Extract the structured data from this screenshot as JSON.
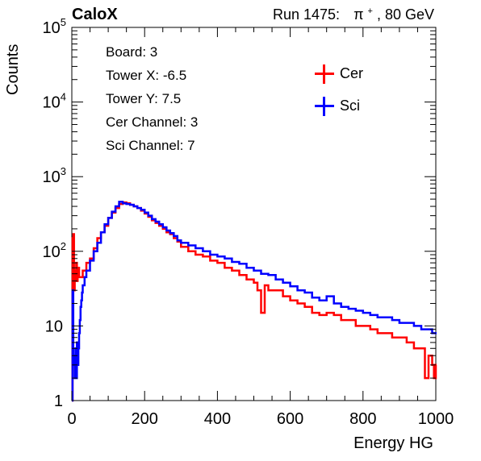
{
  "header": {
    "left_label": "CaloX",
    "run_text": "Run 1475:",
    "particle": "π",
    "particle_sup": "+",
    "energy": ", 80 GeV"
  },
  "info_box": {
    "lines": [
      "Board: 3",
      "Tower X: -6.5",
      "Tower Y: 7.5",
      "Cer Channel: 3",
      "Sci Channel: 7"
    ]
  },
  "colors": {
    "cer": "#ff0000",
    "sci": "#0000ff"
  },
  "chart_data": {
    "type": "line",
    "xlabel": "Energy HG",
    "ylabel": "Counts",
    "xlim": [
      0,
      1000
    ],
    "ylim": [
      1,
      100000
    ],
    "y_scale": "log",
    "x_ticks": [
      "0",
      "200",
      "400",
      "600",
      "800",
      "1000"
    ],
    "y_ticks": [
      {
        "base": "1",
        "exp": ""
      },
      {
        "base": "10",
        "exp": ""
      },
      {
        "base": "10",
        "exp": "2"
      },
      {
        "base": "10",
        "exp": "3"
      },
      {
        "base": "10",
        "exp": "4"
      },
      {
        "base": "10",
        "exp": "5"
      }
    ],
    "grid": false,
    "legend_position": "top-right",
    "series": [
      {
        "name": "Cer",
        "color": "#ff0000",
        "points": [
          [
            0,
            1
          ],
          [
            2,
            150
          ],
          [
            4,
            170
          ],
          [
            6,
            30
          ],
          [
            8,
            40
          ],
          [
            10,
            55
          ],
          [
            12,
            70
          ],
          [
            14,
            40
          ],
          [
            16,
            45
          ],
          [
            18,
            60
          ],
          [
            20,
            45
          ],
          [
            30,
            55
          ],
          [
            40,
            70
          ],
          [
            50,
            80
          ],
          [
            60,
            110
          ],
          [
            70,
            150
          ],
          [
            80,
            180
          ],
          [
            90,
            220
          ],
          [
            100,
            280
          ],
          [
            110,
            330
          ],
          [
            120,
            380
          ],
          [
            130,
            430
          ],
          [
            140,
            450
          ],
          [
            150,
            440
          ],
          [
            160,
            420
          ],
          [
            170,
            400
          ],
          [
            180,
            380
          ],
          [
            190,
            350
          ],
          [
            200,
            320
          ],
          [
            210,
            290
          ],
          [
            220,
            260
          ],
          [
            230,
            240
          ],
          [
            240,
            220
          ],
          [
            250,
            200
          ],
          [
            260,
            180
          ],
          [
            270,
            170
          ],
          [
            280,
            150
          ],
          [
            290,
            135
          ],
          [
            300,
            115
          ],
          [
            320,
            100
          ],
          [
            340,
            90
          ],
          [
            360,
            85
          ],
          [
            380,
            75
          ],
          [
            400,
            70
          ],
          [
            420,
            60
          ],
          [
            440,
            55
          ],
          [
            460,
            48
          ],
          [
            480,
            42
          ],
          [
            500,
            38
          ],
          [
            510,
            30
          ],
          [
            520,
            15
          ],
          [
            530,
            35
          ],
          [
            540,
            30
          ],
          [
            560,
            30
          ],
          [
            580,
            25
          ],
          [
            600,
            22
          ],
          [
            620,
            20
          ],
          [
            640,
            18
          ],
          [
            660,
            15
          ],
          [
            680,
            14
          ],
          [
            700,
            15
          ],
          [
            720,
            14
          ],
          [
            740,
            12
          ],
          [
            760,
            12
          ],
          [
            780,
            10
          ],
          [
            800,
            10
          ],
          [
            820,
            9
          ],
          [
            840,
            8
          ],
          [
            860,
            8
          ],
          [
            880,
            7
          ],
          [
            900,
            7
          ],
          [
            920,
            6
          ],
          [
            940,
            5
          ],
          [
            960,
            5
          ],
          [
            970,
            2
          ],
          [
            980,
            4
          ],
          [
            990,
            3
          ],
          [
            995,
            2
          ],
          [
            1000,
            3
          ]
        ]
      },
      {
        "name": "Sci",
        "color": "#0000ff",
        "points": [
          [
            0,
            1
          ],
          [
            2,
            30
          ],
          [
            4,
            4
          ],
          [
            6,
            3
          ],
          [
            8,
            2
          ],
          [
            10,
            5
          ],
          [
            12,
            2
          ],
          [
            14,
            6
          ],
          [
            16,
            3
          ],
          [
            18,
            5
          ],
          [
            20,
            8
          ],
          [
            22,
            12
          ],
          [
            24,
            18
          ],
          [
            26,
            22
          ],
          [
            28,
            28
          ],
          [
            30,
            35
          ],
          [
            35,
            45
          ],
          [
            40,
            55
          ],
          [
            50,
            75
          ],
          [
            60,
            100
          ],
          [
            70,
            130
          ],
          [
            80,
            180
          ],
          [
            90,
            230
          ],
          [
            100,
            280
          ],
          [
            110,
            340
          ],
          [
            120,
            400
          ],
          [
            130,
            460
          ],
          [
            140,
            440
          ],
          [
            150,
            430
          ],
          [
            160,
            420
          ],
          [
            170,
            400
          ],
          [
            180,
            380
          ],
          [
            190,
            360
          ],
          [
            200,
            330
          ],
          [
            210,
            300
          ],
          [
            220,
            270
          ],
          [
            230,
            250
          ],
          [
            240,
            230
          ],
          [
            250,
            210
          ],
          [
            260,
            190
          ],
          [
            270,
            175
          ],
          [
            280,
            160
          ],
          [
            290,
            140
          ],
          [
            300,
            130
          ],
          [
            320,
            120
          ],
          [
            340,
            110
          ],
          [
            360,
            100
          ],
          [
            380,
            90
          ],
          [
            400,
            85
          ],
          [
            420,
            80
          ],
          [
            440,
            72
          ],
          [
            460,
            68
          ],
          [
            480,
            60
          ],
          [
            500,
            55
          ],
          [
            520,
            50
          ],
          [
            540,
            48
          ],
          [
            560,
            42
          ],
          [
            580,
            38
          ],
          [
            600,
            34
          ],
          [
            620,
            30
          ],
          [
            640,
            28
          ],
          [
            660,
            24
          ],
          [
            680,
            22
          ],
          [
            700,
            25
          ],
          [
            720,
            20
          ],
          [
            740,
            18
          ],
          [
            760,
            17
          ],
          [
            780,
            16
          ],
          [
            800,
            15
          ],
          [
            820,
            14
          ],
          [
            840,
            13
          ],
          [
            860,
            13
          ],
          [
            880,
            12
          ],
          [
            900,
            11
          ],
          [
            920,
            11
          ],
          [
            940,
            10
          ],
          [
            960,
            9
          ],
          [
            980,
            9
          ],
          [
            990,
            8
          ],
          [
            1000,
            8
          ]
        ]
      }
    ]
  }
}
